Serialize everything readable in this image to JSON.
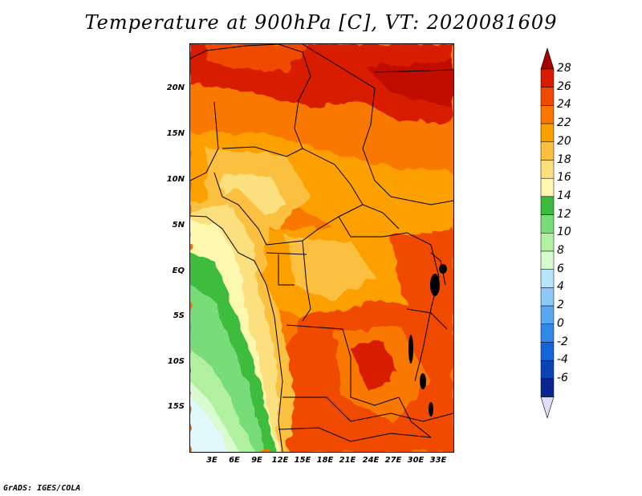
{
  "title": "Temperature at 900hPa [C], VT: 2020081609",
  "footer": "GrADS: IGES/COLA",
  "map": {
    "lat_ticks": [
      "20N",
      "15N",
      "10N",
      "5N",
      "EQ",
      "5S",
      "10S",
      "15S"
    ],
    "lon_ticks": [
      "3E",
      "6E",
      "9E",
      "12E",
      "15E",
      "18E",
      "21E",
      "24E",
      "27E",
      "30E",
      "33E"
    ]
  },
  "colorbar": {
    "labels": [
      "28",
      "26",
      "24",
      "22",
      "20",
      "18",
      "16",
      "14",
      "12",
      "10",
      "8",
      "6",
      "4",
      "2",
      "0",
      "-2",
      "-4",
      "-6"
    ],
    "colors": [
      "#a50000",
      "#d81c00",
      "#f04a00",
      "#f87800",
      "#fca000",
      "#fcc040",
      "#fce080",
      "#fcf8b0",
      "#3cbc3c",
      "#78dc78",
      "#b0f0a0",
      "#d8fcd0",
      "#b8e4fc",
      "#8cc8f8",
      "#5aa8f0",
      "#3088e8",
      "#1466d8",
      "#0a44b4",
      "#0a2490",
      "#08086a"
    ],
    "top_arrow_color": "#a50000",
    "bottom_arrow_color": "#e0dcfc"
  }
}
